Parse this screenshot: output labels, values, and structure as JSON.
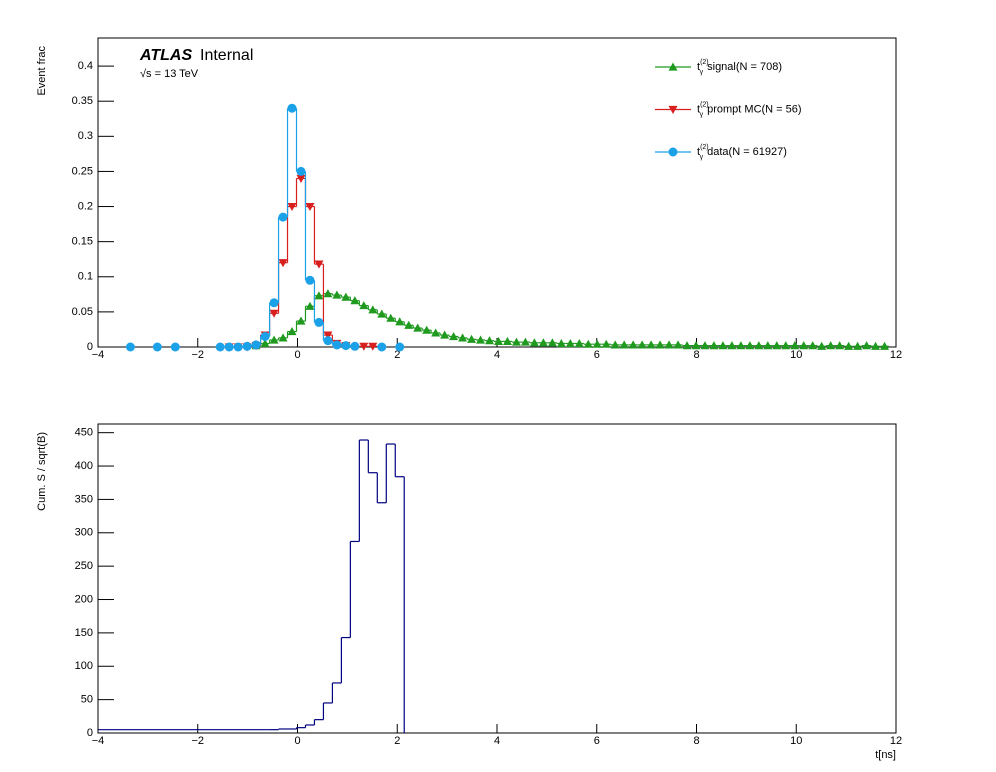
{
  "chart_data": [
    {
      "type": "step",
      "ylabel": "Event frac",
      "atlas_label": "ATLAS",
      "atlas_status": "Internal",
      "energy_label": "√s = 13 TeV",
      "legend_symbol": {
        "base": "t",
        "sup": "(2)",
        "sub": "γ"
      },
      "legend": "top right",
      "xlim": [
        -4,
        12
      ],
      "xticks": [
        {
          "value": -4,
          "label": "−4"
        },
        {
          "value": -2,
          "label": "−2"
        },
        0,
        2,
        4,
        6,
        8,
        10,
        12
      ],
      "ylim": [
        0,
        0.44
      ],
      "yticks": [
        0,
        0.05,
        0.1,
        0.15,
        0.2,
        0.25,
        0.3,
        0.35,
        0.4
      ],
      "series": [
        {
          "name": "signal(N = 708)",
          "color": "#1f9a1f",
          "marker": "triangle-up",
          "x": [
            -0.83,
            -0.65,
            -0.47,
            -0.29,
            -0.11,
            0.07,
            0.25,
            0.43,
            0.61,
            0.79,
            0.97,
            1.15,
            1.33,
            1.51,
            1.69,
            1.87,
            2.05,
            2.23,
            2.41,
            2.59,
            2.77,
            2.95,
            3.13,
            3.31,
            3.49,
            3.67,
            3.85,
            4.03,
            4.21,
            4.39,
            4.57,
            4.75,
            4.93,
            5.11,
            5.29,
            5.47,
            5.65,
            5.83,
            6.01,
            6.19,
            6.37,
            6.55,
            6.73,
            6.91,
            7.09,
            7.27,
            7.45,
            7.63,
            7.81,
            7.99,
            8.17,
            8.35,
            8.53,
            8.71,
            8.89,
            9.07,
            9.25,
            9.43,
            9.61,
            9.79,
            9.97,
            10.15,
            10.33,
            10.51,
            10.69,
            10.87,
            11.05,
            11.23,
            11.41,
            11.59,
            11.77
          ],
          "values": [
            0.002,
            0.005,
            0.01,
            0.013,
            0.022,
            0.037,
            0.058,
            0.073,
            0.076,
            0.074,
            0.071,
            0.066,
            0.059,
            0.053,
            0.047,
            0.041,
            0.036,
            0.031,
            0.027,
            0.024,
            0.02,
            0.017,
            0.015,
            0.013,
            0.011,
            0.01,
            0.009,
            0.008,
            0.008,
            0.007,
            0.007,
            0.006,
            0.006,
            0.006,
            0.005,
            0.005,
            0.005,
            0.004,
            0.004,
            0.004,
            0.003,
            0.003,
            0.003,
            0.003,
            0.003,
            0.003,
            0.003,
            0.003,
            0.002,
            0.002,
            0.002,
            0.002,
            0.002,
            0.002,
            0.002,
            0.002,
            0.002,
            0.002,
            0.002,
            0.002,
            0.002,
            0.002,
            0.002,
            0.001,
            0.002,
            0.002,
            0.001,
            0.001,
            0.002,
            0.001,
            0.001
          ]
        },
        {
          "name": "prompt MC(N = 56)",
          "color": "#d91e1e",
          "marker": "triangle-down",
          "x": [
            -1.37,
            -1.19,
            -1.01,
            -0.83,
            -0.65,
            -0.47,
            -0.29,
            -0.11,
            0.07,
            0.25,
            0.43,
            0.61,
            0.79,
            0.97,
            1.33,
            1.51
          ],
          "values": [
            0,
            0,
            0,
            0.002,
            0.017,
            0.048,
            0.12,
            0.2,
            0.24,
            0.2,
            0.118,
            0.017,
            0.005,
            0.002,
            0.001,
            0.001
          ]
        },
        {
          "name": "data(N = 61927)",
          "color": "#1ba1e8",
          "marker": "circle",
          "x": [
            -3.35,
            -2.81,
            -2.45,
            -1.55,
            -1.37,
            -1.19,
            -1.01,
            -0.83,
            -0.65,
            -0.47,
            -0.29,
            -0.11,
            0.07,
            0.25,
            0.43,
            0.61,
            0.79,
            0.97,
            1.15,
            1.69,
            2.05
          ],
          "values": [
            0,
            0,
            0,
            0,
            0,
            0,
            0.001,
            0.003,
            0.015,
            0.063,
            0.185,
            0.34,
            0.25,
            0.095,
            0.035,
            0.009,
            0.003,
            0.002,
            0.001,
            0,
            0
          ]
        }
      ]
    },
    {
      "type": "histogram",
      "ylabel": "Cum. S / sqrt(B)",
      "xlabel": "t[ns]",
      "color": "#000080",
      "xlim": [
        -4,
        12
      ],
      "xticks": [
        {
          "value": -4,
          "label": "−4"
        },
        {
          "value": -2,
          "label": "−2"
        },
        0,
        2,
        4,
        6,
        8,
        10,
        12
      ],
      "ylim": [
        0,
        463
      ],
      "yticks": [
        0,
        50,
        100,
        150,
        200,
        250,
        300,
        350,
        400,
        450
      ],
      "bins": [
        -4,
        -0.56,
        -0.38,
        -0.2,
        -0.02,
        0.16,
        0.34,
        0.52,
        0.7,
        0.88,
        1.06,
        1.24,
        1.42,
        1.6,
        1.78,
        1.96,
        2.14
      ],
      "values": [
        5,
        5,
        6,
        6,
        8,
        12,
        20,
        45,
        75,
        143,
        287,
        439,
        390,
        345,
        433,
        384
      ]
    }
  ]
}
